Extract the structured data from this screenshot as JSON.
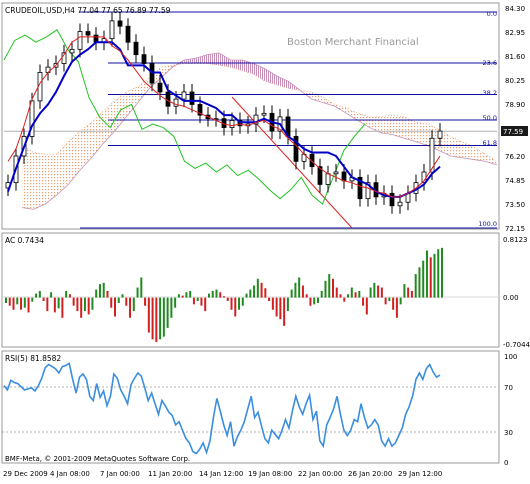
{
  "header": {
    "symbol_info": "CRUDEOIL,USD,H4  77.04 77.65 76.89 77.59",
    "watermark": "Boston Merchant Financial"
  },
  "main_panel": {
    "price_labels": [
      "84.30",
      "82.95",
      "81.60",
      "80.25",
      "78.90",
      "77.59",
      "76.20",
      "74.85",
      "73.50",
      "72.15"
    ],
    "current_price": "77.59",
    "fib_levels": [
      "0.0",
      "23.6",
      "38.2",
      "50.0",
      "61.8",
      "100.0"
    ]
  },
  "ac_panel": {
    "label": "AC 0.7434",
    "scale_labels": [
      "0.8123",
      "0.00",
      "-0.7044"
    ]
  },
  "rsi_panel": {
    "label": "RSI(5) 81.8582",
    "scale_labels": [
      "100",
      "70",
      "30",
      "0"
    ]
  },
  "footer": {
    "copyright": "BMF-Meta, © 2001-2009 MetaQuotes Software Corp."
  },
  "time_axis": [
    "29 Dec 2009",
    "4 Jan 08:00",
    "7 Jan 00:00",
    "11 Jan 20:00",
    "14 Jan 12:00",
    "19 Jan 08:00",
    "22 Jan 00:00",
    "26 Jan 20:00",
    "29 Jan 12:00"
  ],
  "colors": {
    "frame": "#9a9a9a",
    "fib_line": "#1010a0",
    "kijun_line": "#0000c8",
    "tenkan_line": "#e02020",
    "chikou_line": "#22c422",
    "cloud_up": "#e8a070",
    "cloud_down": "#c890b8",
    "ac_up": "#208a20",
    "ac_down": "#d02020",
    "rsi_line": "#3a8ee0",
    "rsi_levels": "#b0b0b0",
    "current_price_box": "#1a1a1a"
  },
  "chart_data": {
    "type": "line",
    "price_range": [
      72.15,
      84.3
    ],
    "ac_range": [
      -0.7044,
      0.8123
    ],
    "ac_last": 0.7434,
    "rsi_range": [
      0,
      100
    ],
    "rsi_last": 81.8582,
    "close": [
      74.7,
      76.2,
      77.3,
      79.3,
      80.9,
      81.2,
      81.4,
      82.0,
      82.2,
      83.2,
      83.0,
      82.6,
      82.8,
      83.8,
      83.5,
      82.6,
      81.9,
      81.4,
      80.3,
      79.8,
      79.0,
      79.4,
      79.8,
      79.1,
      78.5,
      78.3,
      78.3,
      77.8,
      78.2,
      77.9,
      78.0,
      78.5,
      78.6,
      77.6,
      78.4,
      77.3,
      75.9,
      76.3,
      75.6,
      74.6,
      75.2,
      75.3,
      74.8,
      75.0,
      73.8,
      74.7,
      73.9,
      74.1,
      73.4,
      73.6,
      74.1,
      74.7,
      75.3,
      77.2,
      77.6
    ],
    "tenkan": [
      75.9,
      76.6,
      77.9,
      79.4,
      80.3,
      80.9,
      81.3,
      81.9,
      82.6,
      82.9,
      82.9,
      82.9,
      82.9,
      82.4,
      82.1,
      81.6,
      81.0,
      80.4,
      80.0,
      79.6,
      79.3,
      79.1,
      79.0,
      78.8,
      78.6,
      78.4,
      78.2,
      78.0,
      77.9,
      78.0,
      77.9,
      78.1,
      78.2,
      77.9,
      77.7,
      77.2,
      76.8,
      76.3,
      75.9,
      75.5,
      75.2,
      75.0,
      74.8,
      74.7,
      74.5,
      74.4,
      74.2,
      74.1,
      73.9,
      73.9,
      74.1,
      74.4,
      74.8,
      75.5,
      76.2
    ],
    "kijun": [
      74.2,
      75.5,
      76.7,
      77.9,
      78.6,
      79.1,
      79.8,
      80.7,
      81.5,
      81.9,
      82.2,
      82.6,
      82.6,
      82.6,
      82.2,
      81.3,
      81.3,
      81.3,
      80.9,
      80.9,
      79.9,
      79.6,
      79.3,
      79.3,
      79.3,
      79.1,
      78.9,
      78.5,
      78.5,
      78.1,
      78.1,
      78.1,
      78.3,
      78.1,
      78.0,
      77.3,
      77.0,
      76.6,
      76.4,
      76.4,
      76.4,
      76.2,
      75.6,
      75.0,
      74.8,
      74.6,
      74.2,
      74.0,
      73.9,
      73.9,
      74.1,
      74.3,
      74.6,
      75.2,
      75.6
    ],
    "chikou": [
      81.6,
      82.7,
      83.0,
      82.6,
      82.9,
      83.3,
      82.2,
      81.5,
      79.5,
      78.4,
      77.8,
      78.8,
      79.1,
      77.7,
      78.0,
      77.8,
      77.3,
      75.9,
      75.5,
      75.8,
      75.3,
      75.7,
      75.1,
      75.4,
      74.9,
      74.3,
      73.8,
      74.3,
      75.0,
      74.0,
      73.5,
      75.0,
      76.5,
      77.3,
      78.0
    ],
    "senkou_a": [
      76.8,
      76.4,
      76.3,
      76.3,
      77.0,
      77.6,
      78.1,
      78.7,
      79.3,
      79.8,
      80.1,
      80.6,
      81.2,
      81.3,
      81.4,
      81.4,
      81.4,
      81.3,
      81.2,
      81.0,
      80.8,
      80.4,
      80.2,
      80.0,
      79.9,
      79.8,
      79.5,
      79.1,
      78.9,
      78.6,
      78.4,
      78.4,
      78.5,
      78.4,
      78.1,
      78.0,
      77.7,
      77.3,
      77.0,
      76.7,
      76.3,
      75.9
    ],
    "senkou_b": [
      73.3,
      73.2,
      73.5,
      74.0,
      74.6,
      75.4,
      76.1,
      76.9,
      77.6,
      78.4,
      79.2,
      80.0,
      80.6,
      81.2,
      81.6,
      81.7,
      81.9,
      82.0,
      81.6,
      81.6,
      81.4,
      81.1,
      80.7,
      80.4,
      79.9,
      79.4,
      79.2,
      79.0,
      78.6,
      78.2,
      77.8,
      77.5,
      77.4,
      77.2,
      77.0,
      76.8,
      76.5,
      76.2,
      76.1,
      76.0,
      75.9,
      75.7
    ],
    "ac_values": [
      -0.08,
      -0.12,
      -0.18,
      -0.1,
      -0.18,
      -0.15,
      -0.22,
      -0.06,
      0.06,
      0.1,
      -0.05,
      -0.2,
      0.08,
      -0.22,
      -0.16,
      -0.3,
      0.1,
      0.05,
      -0.12,
      -0.2,
      -0.3,
      -0.2,
      -0.25,
      -0.18,
      0.12,
      0.2,
      0.22,
      0.1,
      -0.15,
      -0.28,
      -0.08,
      0.05,
      -0.12,
      -0.3,
      -0.2,
      0.15,
      0.3,
      -0.12,
      -0.52,
      -0.62,
      -0.66,
      -0.62,
      -0.58,
      -0.45,
      -0.3,
      -0.15,
      0.05,
      0.03,
      0.08,
      0.1,
      -0.1,
      -0.05,
      -0.12,
      -0.2,
      0.06,
      0.1,
      0.12,
      0.08,
      0.02,
      -0.05,
      -0.18,
      -0.28,
      -0.18,
      -0.12,
      0.06,
      0.12,
      0.18,
      0.28,
      0.22,
      0.14,
      -0.05,
      -0.18,
      -0.28,
      -0.32,
      -0.42,
      -0.2,
      0.12,
      0.22,
      0.3,
      0.18,
      0.05,
      -0.12,
      -0.1,
      -0.08,
      0.1,
      0.25,
      0.35,
      0.28,
      0.15,
      0.05,
      -0.06,
      0.05,
      0.15,
      0.08,
      0.1,
      -0.12,
      -0.25,
      0.15,
      0.22,
      0.18,
      0.15,
      -0.1,
      -0.05,
      -0.18,
      -0.3,
      -0.1,
      0.2,
      0.15,
      0.1,
      0.35,
      0.45,
      0.55,
      0.7,
      0.6,
      0.65,
      0.72,
      0.74
    ],
    "rsi_values": [
      72,
      68,
      77,
      75,
      74,
      71,
      68,
      69,
      70,
      67,
      72,
      79,
      89,
      92,
      90,
      88,
      84,
      90,
      91,
      93,
      78,
      65,
      80,
      83,
      78,
      62,
      58,
      74,
      61,
      67,
      53,
      62,
      83,
      79,
      68,
      62,
      55,
      73,
      79,
      84,
      81,
      70,
      58,
      65,
      55,
      45,
      58,
      53,
      47,
      44,
      35,
      38,
      30,
      22,
      18,
      10,
      8,
      12,
      18,
      9,
      20,
      42,
      60,
      48,
      35,
      25,
      38,
      15,
      24,
      30,
      38,
      50,
      62,
      42,
      47,
      34,
      22,
      18,
      30,
      26,
      22,
      30,
      40,
      32,
      48,
      62,
      52,
      45,
      55,
      63,
      40,
      48,
      20,
      15,
      35,
      42,
      50,
      62,
      45,
      30,
      25,
      30,
      40,
      38,
      55,
      42,
      32,
      35,
      40,
      35,
      20,
      15,
      22,
      15,
      18,
      25,
      32,
      45,
      52,
      62,
      78,
      84,
      78,
      88,
      92,
      85,
      80,
      82
    ]
  }
}
